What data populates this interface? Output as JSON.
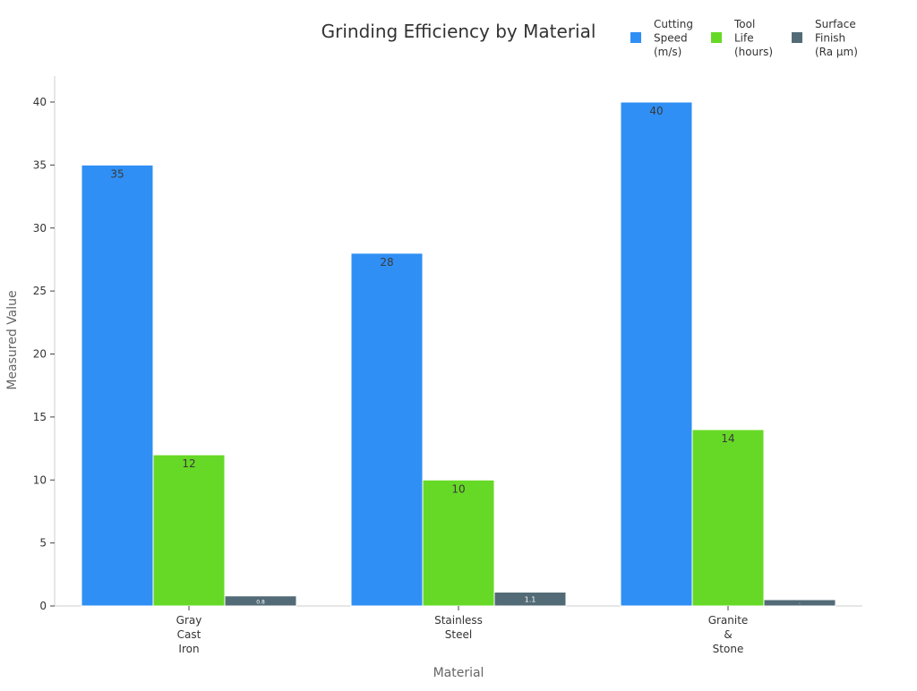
{
  "chart_data": {
    "type": "bar",
    "title": "Grinding Efficiency by Material",
    "xlabel": "Material",
    "ylabel": "Measured Value",
    "ylim": [
      0,
      42
    ],
    "yticks": [
      0,
      5,
      10,
      15,
      20,
      25,
      30,
      35,
      40
    ],
    "grid": false,
    "legend_position": "top-right",
    "categories": [
      [
        "Gray",
        "Cast",
        "Iron"
      ],
      [
        "Stainless",
        "Steel"
      ],
      [
        "Granite",
        "&",
        "Stone"
      ]
    ],
    "series": [
      {
        "name": [
          "Cutting",
          "Speed",
          "(m/s)"
        ],
        "color": "#2f8ff5",
        "values": [
          35,
          28,
          40
        ],
        "labels": [
          "35",
          "28",
          "40"
        ],
        "label_color": "#3a3a3a"
      },
      {
        "name": [
          "Tool",
          "Life",
          "(hours)"
        ],
        "color": "#66d926",
        "values": [
          12,
          10,
          14
        ],
        "labels": [
          "12",
          "10",
          "14"
        ],
        "label_color": "#3a3a3a"
      },
      {
        "name": [
          "Surface",
          "Finish",
          "(Ra μm)"
        ],
        "color": "#536b76",
        "values": [
          0.8,
          1.1,
          0.5
        ],
        "labels": [
          "0.8",
          "1.1",
          "·"
        ],
        "label_color": "#ffffff"
      }
    ]
  }
}
